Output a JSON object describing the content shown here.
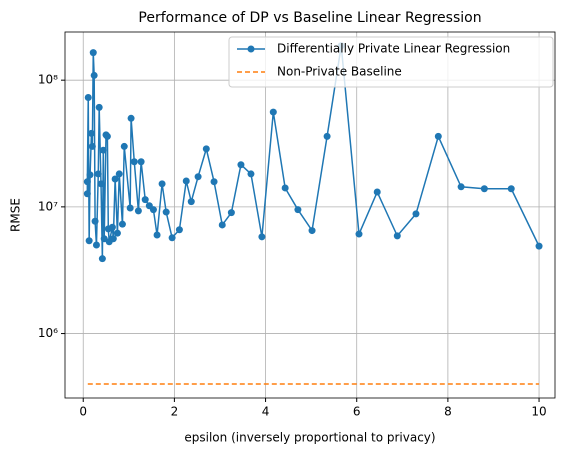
{
  "chart_data": {
    "type": "line",
    "title": "Performance of DP vs Baseline Linear Regression",
    "x_label": "epsilon (inversely proportional to privacy)",
    "y_label": "RMSE",
    "log_y": true,
    "grid": true,
    "legend_position": "upper right",
    "xlim": [
      -0.4,
      10.35
    ],
    "ylim": [
      310000,
      240000000
    ],
    "xticks": [
      0,
      2,
      4,
      6,
      8,
      10
    ],
    "yticks": [
      {
        "value": 1000000,
        "label": "10⁶"
      },
      {
        "value": 10000000,
        "label": "10⁷"
      },
      {
        "value": 100000000,
        "label": "10⁸"
      }
    ],
    "series": [
      {
        "name": "Differentially Private Linear Regression",
        "color": "#1f77b4",
        "marker": true,
        "dashed": false,
        "x": [
          0.09,
          0.09,
          0.11,
          0.13,
          0.15,
          0.18,
          0.2,
          0.22,
          0.24,
          0.26,
          0.29,
          0.33,
          0.35,
          0.39,
          0.42,
          0.44,
          0.46,
          0.5,
          0.53,
          0.55,
          0.57,
          0.64,
          0.66,
          0.7,
          0.75,
          0.79,
          0.86,
          0.9,
          1.03,
          1.05,
          1.12,
          1.21,
          1.27,
          1.36,
          1.45,
          1.54,
          1.62,
          1.73,
          1.82,
          1.95,
          2.11,
          2.26,
          2.37,
          2.52,
          2.7,
          2.87,
          3.05,
          3.25,
          3.46,
          3.68,
          3.92,
          4.17,
          4.43,
          4.71,
          5.02,
          5.35,
          5.66,
          6.05,
          6.45,
          6.89,
          7.3,
          7.79,
          8.29,
          8.8,
          9.39,
          10
        ],
        "values": [
          12700000,
          15800000,
          73000000,
          5400000,
          17900000,
          38000000,
          30000000,
          165000000,
          109000000,
          7700000,
          5000000,
          18200000,
          61000000,
          15200000,
          3900000,
          28000000,
          5600000,
          37000000,
          36000000,
          6700000,
          5300000,
          6900000,
          5600000,
          16600000,
          6200000,
          18200000,
          7300000,
          30000000,
          9800000,
          50000000,
          22700000,
          9300000,
          22700000,
          11400000,
          10200000,
          9500000,
          6000000,
          15200000,
          9100000,
          5700000,
          6600000,
          16000000,
          11000000,
          17300000,
          28700000,
          15800000,
          7200000,
          9000000,
          21500000,
          18200000,
          5800000,
          56000000,
          14100000,
          9500000,
          6500000,
          36000000,
          187000000,
          6100000,
          13100000,
          5900000,
          8800000,
          36000000,
          14400000,
          13900000,
          13900000,
          4900000
        ]
      },
      {
        "name": "Non-Private Baseline",
        "color": "#ff7f0e",
        "marker": false,
        "dashed": true,
        "x": [
          0.1,
          10
        ],
        "values": [
          400000,
          400000
        ]
      }
    ]
  }
}
